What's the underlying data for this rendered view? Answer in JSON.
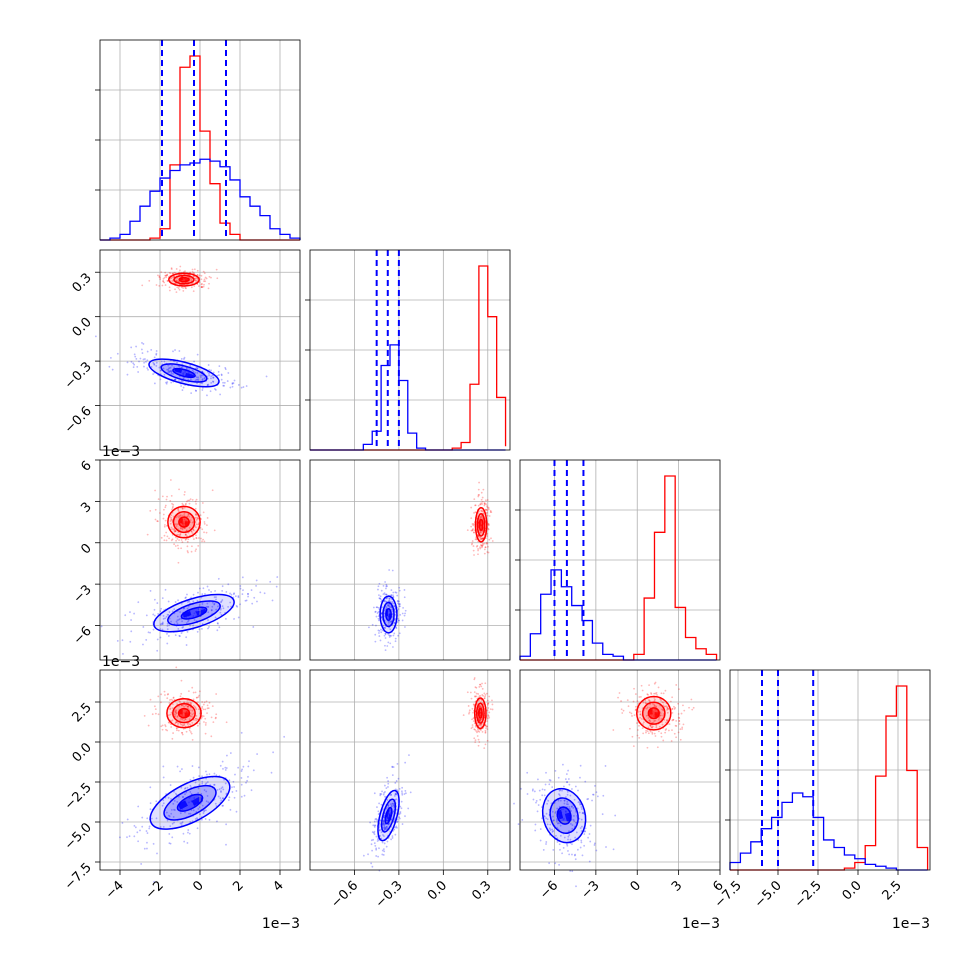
{
  "chart_data": {
    "type": "corner",
    "colors": {
      "red": "#ff0000",
      "blue": "#0000ff"
    },
    "grid": true,
    "variables": [
      {
        "ticks": [
          -4,
          -2,
          0,
          2,
          4
        ],
        "tick_labels": [
          "−4",
          "−2",
          "0",
          "2",
          "4"
        ],
        "range": [
          -5,
          5
        ],
        "offset": "1e−3"
      },
      {
        "ticks": [
          -0.6,
          -0.3,
          0.0,
          0.3
        ],
        "tick_labels": [
          "−0.6",
          "−0.3",
          "0.0",
          "0.3"
        ],
        "range": [
          -0.9,
          0.45
        ],
        "offset": ""
      },
      {
        "ticks": [
          -6,
          -3,
          0,
          3,
          6
        ],
        "tick_labels": [
          "−6",
          "−3",
          "0",
          "3",
          "6"
        ],
        "range": [
          -8.5,
          6
        ],
        "offset": "1e−3"
      },
      {
        "ticks": [
          -7.5,
          -5.0,
          -2.5,
          0.0,
          2.5
        ],
        "tick_labels": [
          "−7.5",
          "−5.0",
          "−2.5",
          "0.0",
          "2.5"
        ],
        "range": [
          -8,
          4.5
        ],
        "offset": "1e−3"
      }
    ],
    "quantiles": [
      [
        -1.9,
        -0.3,
        1.3
      ],
      [
        -0.45,
        -0.375,
        -0.3
      ],
      [
        -6.0,
        -5.1,
        -3.9
      ],
      [
        -6.0,
        -5.0,
        -2.8
      ]
    ],
    "histograms": {
      "red": [
        {
          "edges": [
            -5,
            -4.5,
            -4,
            -3.5,
            -3,
            -2.5,
            -2,
            -1.5,
            -1,
            -0.5,
            0,
            0.5,
            1,
            1.5,
            2,
            2.5,
            3,
            3.5,
            4,
            4.5,
            5
          ],
          "counts": [
            0,
            0,
            0,
            0,
            0,
            1,
            6,
            40,
            92,
            98,
            58,
            30,
            9,
            3,
            0,
            0,
            0,
            0,
            0,
            0
          ]
        },
        {
          "edges": [
            -0.9,
            -0.84,
            -0.78,
            -0.72,
            -0.66,
            -0.6,
            -0.54,
            -0.48,
            -0.42,
            -0.36,
            -0.3,
            -0.24,
            -0.18,
            -0.12,
            -0.06,
            0.0,
            0.06,
            0.12,
            0.18,
            0.24,
            0.3,
            0.36,
            0.42
          ],
          "counts": [
            0,
            0,
            0,
            0,
            0,
            0,
            0,
            0,
            0,
            0,
            0,
            0,
            0,
            0,
            0,
            0,
            1,
            4,
            35,
            98,
            71,
            28,
            2
          ]
        },
        {
          "edges": [
            -8.5,
            -7.75,
            -7.0,
            -6.25,
            -5.5,
            -4.75,
            -4.0,
            -3.25,
            -2.5,
            -1.75,
            -1.0,
            -0.25,
            0.5,
            1.25,
            2.0,
            2.75,
            3.5,
            4.25,
            5.0,
            5.75
          ],
          "counts": [
            0,
            0,
            0,
            0,
            0,
            0,
            0,
            0,
            0,
            0,
            0,
            3,
            33,
            68,
            98,
            28,
            12,
            6,
            3
          ]
        },
        {
          "edges": [
            -8.0,
            -7.35,
            -6.7,
            -6.05,
            -5.4,
            -4.75,
            -4.1,
            -3.45,
            -2.8,
            -2.15,
            -1.5,
            -0.85,
            -0.2,
            0.45,
            1.1,
            1.75,
            2.4,
            3.05,
            3.7,
            4.35
          ],
          "counts": [
            0,
            0,
            0,
            0,
            0,
            0,
            0,
            0,
            0,
            0,
            0,
            1,
            4,
            13,
            50,
            82,
            98,
            53,
            12
          ]
        }
      ],
      "blue": [
        {
          "edges": [
            -5,
            -4.5,
            -4,
            -3.5,
            -3,
            -2.5,
            -2,
            -1.5,
            -1,
            -0.5,
            0,
            0.5,
            1,
            1.5,
            2,
            2.5,
            3,
            3.5,
            4,
            4.5,
            5
          ],
          "counts": [
            0,
            1,
            3,
            10,
            18,
            26,
            33,
            37,
            40,
            41,
            43,
            42,
            39,
            32,
            23,
            18,
            13,
            6,
            3,
            1
          ]
        },
        {
          "edges": [
            -0.9,
            -0.84,
            -0.78,
            -0.72,
            -0.66,
            -0.6,
            -0.54,
            -0.48,
            -0.42,
            -0.36,
            -0.3,
            -0.24,
            -0.18,
            -0.12,
            -0.06,
            0.0,
            0.06,
            0.12,
            0.18,
            0.24,
            0.3,
            0.36,
            0.42
          ],
          "counts": [
            0,
            0,
            0,
            0,
            0,
            0,
            3,
            10,
            45,
            56,
            37,
            9,
            1,
            0,
            0,
            0,
            0,
            0,
            0,
            0,
            0,
            0
          ]
        },
        {
          "edges": [
            -8.5,
            -7.75,
            -7.0,
            -6.25,
            -5.5,
            -4.75,
            -4.0,
            -3.25,
            -2.5,
            -1.75,
            -1.0,
            -0.25,
            0.5,
            1.25,
            2.0,
            2.75,
            3.5,
            4.25,
            5.0,
            5.75
          ],
          "counts": [
            2,
            14,
            35,
            48,
            39,
            29,
            21,
            9,
            3,
            2,
            0,
            0,
            0,
            0,
            0,
            0,
            0,
            0,
            0
          ]
        },
        {
          "edges": [
            -8.0,
            -7.35,
            -6.7,
            -6.05,
            -5.4,
            -4.75,
            -4.1,
            -3.45,
            -2.8,
            -2.15,
            -1.5,
            -0.85,
            -0.2,
            0.45,
            1.1,
            1.75,
            2.4,
            3.05,
            3.7,
            4.35
          ],
          "counts": [
            4,
            9,
            15,
            22,
            28,
            36,
            41,
            39,
            28,
            16,
            12,
            8,
            6,
            3,
            2,
            1,
            0,
            0,
            0
          ]
        }
      ]
    },
    "blobs": {
      "red": [
        {
          "row": 1,
          "col": 0,
          "cx": -0.8,
          "cy": 0.25,
          "rx": 0.8,
          "ry": 0.045,
          "tilt": 0
        },
        {
          "row": 2,
          "col": 0,
          "cx": -0.8,
          "cy": 1.5,
          "rx": 0.85,
          "ry": 1.2,
          "tilt": 0
        },
        {
          "row": 3,
          "col": 0,
          "cx": -0.8,
          "cy": 1.8,
          "rx": 0.9,
          "ry": 0.95,
          "tilt": 0
        },
        {
          "row": 2,
          "col": 1,
          "cx": 0.255,
          "cy": 1.3,
          "rx": 0.04,
          "ry": 1.3,
          "tilt": 0
        },
        {
          "row": 3,
          "col": 1,
          "cx": 0.25,
          "cy": 1.8,
          "rx": 0.04,
          "ry": 1.0,
          "tilt": 0
        },
        {
          "row": 3,
          "col": 2,
          "cx": 1.2,
          "cy": 1.8,
          "rx": 1.3,
          "ry": 1.1,
          "tilt": 0
        }
      ],
      "blue": [
        {
          "row": 1,
          "col": 0,
          "cx": -0.8,
          "cy": -0.38,
          "rx": 1.9,
          "ry": 0.075,
          "tilt": -0.3
        },
        {
          "row": 2,
          "col": 0,
          "cx": -0.3,
          "cy": -5.1,
          "rx": 2.2,
          "ry": 1.1,
          "tilt": 0.35
        },
        {
          "row": 3,
          "col": 0,
          "cx": -0.5,
          "cy": -3.8,
          "rx": 2.3,
          "ry": 1.25,
          "tilt": 0.55
        },
        {
          "row": 2,
          "col": 1,
          "cx": -0.37,
          "cy": -5.2,
          "rx": 0.06,
          "ry": 1.4,
          "tilt": 0
        },
        {
          "row": 3,
          "col": 1,
          "cx": -0.37,
          "cy": -4.6,
          "rx": 0.06,
          "ry": 1.7,
          "tilt": -0.3
        },
        {
          "row": 3,
          "col": 2,
          "cx": -5.3,
          "cy": -4.6,
          "rx": 1.6,
          "ry": 1.8,
          "tilt": 0.3
        }
      ]
    }
  }
}
